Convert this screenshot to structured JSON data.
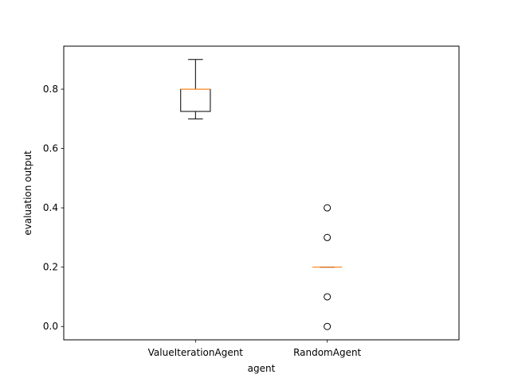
{
  "chart_data": {
    "type": "box",
    "xlabel": "agent",
    "ylabel": "evaluation output",
    "categories": [
      "ValueIterationAgent",
      "RandomAgent"
    ],
    "boxes": [
      {
        "category": "ValueIterationAgent",
        "whisker_low": 0.7,
        "q1": 0.725,
        "median": 0.8,
        "q3": 0.8,
        "whisker_high": 0.9,
        "outliers": []
      },
      {
        "category": "RandomAgent",
        "whisker_low": 0.2,
        "q1": 0.2,
        "median": 0.2,
        "q3": 0.2,
        "whisker_high": 0.2,
        "outliers": [
          0.0,
          0.1,
          0.3,
          0.4
        ]
      }
    ],
    "yticks": [
      0.0,
      0.2,
      0.4,
      0.6,
      0.8
    ],
    "ytick_labels": [
      "0.0",
      "0.2",
      "0.4",
      "0.6",
      "0.8"
    ],
    "ylim": [
      -0.045,
      0.945
    ],
    "grid": false,
    "colors": {
      "median": "#ff7f0e",
      "box": "#000000",
      "outlier": "#000000"
    }
  }
}
